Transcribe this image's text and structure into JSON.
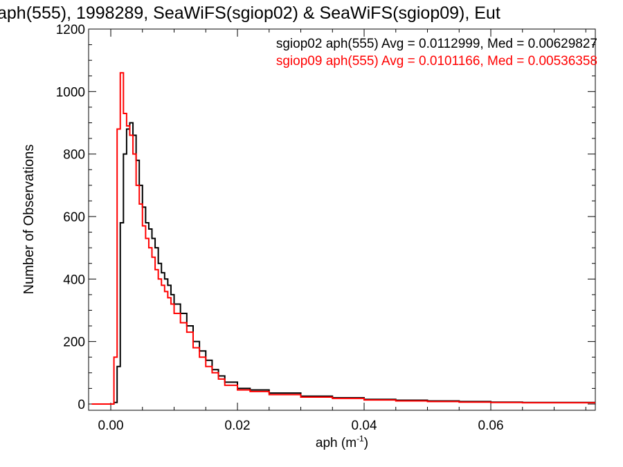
{
  "chart_data": {
    "type": "line",
    "title": "aph(555), 1998289, SeaWiFS(sgiop02) & SeaWiFS(sgiop09), Eut",
    "xlabel": "aph (m",
    "xlabel_sup": "-1",
    "xlabel_end": ")",
    "ylabel": "Number of Observations",
    "xlim": [
      -0.0035,
      0.0765
    ],
    "ylim": [
      -20,
      1200
    ],
    "x_ticks": [
      0.0,
      0.02,
      0.04,
      0.06
    ],
    "x_tick_labels": [
      "0.00",
      "0.02",
      "0.04",
      "0.06"
    ],
    "y_ticks": [
      0,
      200,
      400,
      600,
      800,
      1000,
      1200
    ],
    "y_tick_labels": [
      "0",
      "200",
      "400",
      "600",
      "800",
      "1000",
      "1200"
    ],
    "grid": false,
    "legend_position": "top-right",
    "series": [
      {
        "name": "sgiop02",
        "color": "#000000",
        "legend": "sgiop02 aph(555) Avg = 0.0112999, Med = 0.00629827",
        "x": [
          -0.003,
          0.0,
          0.0005,
          0.001,
          0.0015,
          0.002,
          0.0025,
          0.003,
          0.0035,
          0.004,
          0.0045,
          0.005,
          0.0055,
          0.006,
          0.0065,
          0.007,
          0.0075,
          0.008,
          0.0085,
          0.009,
          0.0095,
          0.01,
          0.011,
          0.012,
          0.013,
          0.014,
          0.015,
          0.016,
          0.017,
          0.018,
          0.02,
          0.022,
          0.025,
          0.03,
          0.035,
          0.04,
          0.045,
          0.05,
          0.055,
          0.06,
          0.065,
          0.07,
          0.0765
        ],
        "y": [
          0,
          0,
          5,
          120,
          580,
          800,
          880,
          900,
          860,
          780,
          700,
          630,
          580,
          560,
          530,
          500,
          450,
          420,
          400,
          380,
          350,
          320,
          290,
          250,
          200,
          170,
          140,
          110,
          90,
          70,
          50,
          45,
          35,
          25,
          20,
          15,
          12,
          10,
          8,
          6,
          5,
          5,
          5
        ]
      },
      {
        "name": "sgiop09",
        "color": "#ff0000",
        "legend": "sgiop09 aph(555) Avg = 0.0101166, Med = 0.00536358",
        "x": [
          -0.003,
          0.0,
          0.0005,
          0.001,
          0.0015,
          0.002,
          0.0025,
          0.003,
          0.0035,
          0.004,
          0.0045,
          0.005,
          0.0055,
          0.006,
          0.0065,
          0.007,
          0.0075,
          0.008,
          0.0085,
          0.009,
          0.0095,
          0.01,
          0.011,
          0.012,
          0.013,
          0.014,
          0.015,
          0.016,
          0.017,
          0.018,
          0.02,
          0.022,
          0.025,
          0.03,
          0.035,
          0.04,
          0.045,
          0.05,
          0.055,
          0.06,
          0.065,
          0.07,
          0.0765
        ],
        "y": [
          0,
          0,
          150,
          880,
          1060,
          930,
          890,
          860,
          800,
          700,
          640,
          570,
          530,
          500,
          470,
          430,
          400,
          380,
          360,
          340,
          320,
          290,
          260,
          230,
          180,
          150,
          120,
          100,
          80,
          60,
          45,
          40,
          30,
          22,
          18,
          13,
          10,
          8,
          6,
          5,
          4,
          4,
          4
        ]
      }
    ]
  }
}
